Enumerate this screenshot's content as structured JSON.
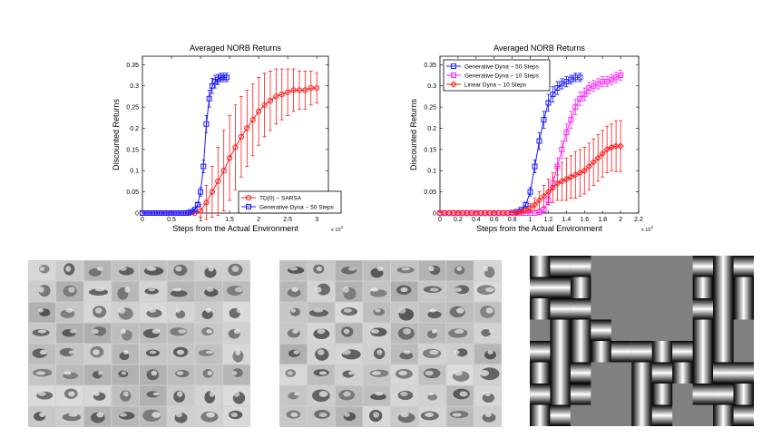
{
  "chart_data": [
    {
      "type": "line",
      "title": "Averaged NORB Returns",
      "xlabel": "Steps from the Actual Environment",
      "ylabel": "Discounted Returns",
      "x_multiplier": "x 10",
      "x_multiplier_exp": "4",
      "xlim": [
        0,
        3.2
      ],
      "ylim": [
        0,
        0.37
      ],
      "x_ticks": [
        0,
        0.5,
        1,
        1.5,
        2,
        2.5,
        3
      ],
      "x_tick_labels": [
        "0",
        "0.5",
        "1",
        "1.5",
        "2",
        "2.5",
        "3"
      ],
      "y_ticks": [
        0,
        0.05,
        0.1,
        0.15,
        0.2,
        0.25,
        0.3,
        0.35
      ],
      "y_tick_labels": [
        "0",
        "0.05",
        "0.1",
        "0.15",
        "0.2",
        "0.25",
        "0.3",
        "0.35"
      ],
      "legend_position": "bottom-right",
      "series": [
        {
          "name": "TD(0) − SARSA",
          "color": "#ff1a1a",
          "marker": "circle",
          "x": [
            0,
            0.1,
            0.2,
            0.3,
            0.4,
            0.5,
            0.6,
            0.7,
            0.8,
            0.9,
            1.0,
            1.1,
            1.2,
            1.3,
            1.4,
            1.5,
            1.6,
            1.7,
            1.8,
            1.9,
            2.0,
            2.1,
            2.2,
            2.3,
            2.4,
            2.5,
            2.6,
            2.7,
            2.8,
            2.9,
            3.0
          ],
          "y": [
            0,
            0,
            0,
            0,
            0,
            0,
            0,
            0,
            0,
            0,
            0.005,
            0.025,
            0.05,
            0.075,
            0.1,
            0.13,
            0.155,
            0.18,
            0.2,
            0.22,
            0.24,
            0.255,
            0.265,
            0.275,
            0.28,
            0.285,
            0.29,
            0.29,
            0.29,
            0.295,
            0.295
          ],
          "err": [
            0,
            0,
            0,
            0,
            0,
            0,
            0,
            0,
            0,
            0,
            0.015,
            0.04,
            0.06,
            0.08,
            0.095,
            0.1,
            0.1,
            0.095,
            0.09,
            0.085,
            0.08,
            0.075,
            0.07,
            0.065,
            0.06,
            0.055,
            0.05,
            0.045,
            0.045,
            0.04,
            0.035
          ]
        },
        {
          "name": "Generative Dyna − 50 Steps",
          "color": "#1a1aff",
          "marker": "square",
          "x": [
            0,
            0.05,
            0.1,
            0.15,
            0.2,
            0.25,
            0.3,
            0.35,
            0.4,
            0.45,
            0.5,
            0.55,
            0.6,
            0.65,
            0.7,
            0.75,
            0.8,
            0.85,
            0.9,
            0.95,
            1.0,
            1.05,
            1.1,
            1.15,
            1.2,
            1.25,
            1.3,
            1.35,
            1.4,
            1.45
          ],
          "y": [
            0,
            0,
            0,
            0,
            0,
            0,
            0,
            0,
            0,
            0,
            0,
            0,
            0,
            0,
            0,
            0,
            0.001,
            0.003,
            0.008,
            0.02,
            0.05,
            0.11,
            0.21,
            0.27,
            0.3,
            0.31,
            0.315,
            0.32,
            0.32,
            0.32
          ],
          "err": [
            0,
            0,
            0,
            0,
            0,
            0,
            0,
            0,
            0,
            0,
            0,
            0,
            0,
            0,
            0,
            0,
            0,
            0,
            0.002,
            0.004,
            0.01,
            0.015,
            0.02,
            0.02,
            0.018,
            0.015,
            0.012,
            0.01,
            0.01,
            0.01
          ]
        }
      ]
    },
    {
      "type": "line",
      "title": "Averaged NORB Returns",
      "xlabel": "Steps from the Actual Environment",
      "ylabel": "Discounted Returns",
      "x_multiplier": "x 10",
      "x_multiplier_exp": "4",
      "xlim": [
        0,
        2.2
      ],
      "ylim": [
        0,
        0.37
      ],
      "x_ticks": [
        0,
        0.2,
        0.4,
        0.6,
        0.8,
        1,
        1.2,
        1.4,
        1.6,
        1.8,
        2,
        2.2
      ],
      "x_tick_labels": [
        "0",
        "0.2",
        "0.4",
        "0.6",
        "0.8",
        "1",
        "1.2",
        "1.4",
        "1.6",
        "1.8",
        "2",
        "2.2"
      ],
      "y_ticks": [
        0,
        0.05,
        0.1,
        0.15,
        0.2,
        0.25,
        0.3,
        0.35
      ],
      "y_tick_labels": [
        "0",
        "0.05",
        "0.1",
        "0.15",
        "0.2",
        "0.25",
        "0.3",
        "0.35"
      ],
      "legend_position": "top-left",
      "series": [
        {
          "name": "Generative Dyna − 50 Steps",
          "color": "#1a1aff",
          "marker": "square",
          "x": [
            0,
            0.05,
            0.1,
            0.15,
            0.2,
            0.25,
            0.3,
            0.35,
            0.4,
            0.45,
            0.5,
            0.55,
            0.6,
            0.65,
            0.7,
            0.75,
            0.8,
            0.85,
            0.9,
            0.95,
            1.0,
            1.05,
            1.1,
            1.15,
            1.2,
            1.25,
            1.3,
            1.35,
            1.4,
            1.45,
            1.5,
            1.55
          ],
          "y": [
            0,
            0,
            0,
            0,
            0,
            0,
            0,
            0,
            0,
            0,
            0,
            0,
            0,
            0,
            0,
            0,
            0.001,
            0.003,
            0.008,
            0.02,
            0.05,
            0.11,
            0.17,
            0.22,
            0.26,
            0.28,
            0.295,
            0.305,
            0.31,
            0.315,
            0.32,
            0.32
          ],
          "err": [
            0,
            0,
            0,
            0,
            0,
            0,
            0,
            0,
            0,
            0,
            0,
            0,
            0,
            0,
            0,
            0,
            0,
            0,
            0.002,
            0.004,
            0.01,
            0.015,
            0.02,
            0.02,
            0.02,
            0.018,
            0.015,
            0.012,
            0.012,
            0.01,
            0.01,
            0.01
          ]
        },
        {
          "name": "Generative Dyna − 10 Steps",
          "color": "#ff22ff",
          "marker": "square",
          "x": [
            0,
            0.05,
            0.1,
            0.15,
            0.2,
            0.25,
            0.3,
            0.35,
            0.4,
            0.45,
            0.5,
            0.55,
            0.6,
            0.65,
            0.7,
            0.75,
            0.8,
            0.85,
            0.9,
            0.95,
            1.0,
            1.05,
            1.1,
            1.15,
            1.2,
            1.25,
            1.3,
            1.35,
            1.4,
            1.45,
            1.5,
            1.55,
            1.6,
            1.65,
            1.7,
            1.75,
            1.8,
            1.85,
            1.9,
            1.95,
            2.0
          ],
          "y": [
            0,
            0,
            0,
            0,
            0,
            0,
            0,
            0,
            0,
            0,
            0,
            0,
            0,
            0,
            0,
            0,
            0,
            0,
            0,
            0,
            0,
            0,
            0.002,
            0.008,
            0.03,
            0.07,
            0.11,
            0.15,
            0.19,
            0.22,
            0.25,
            0.27,
            0.28,
            0.295,
            0.3,
            0.305,
            0.31,
            0.31,
            0.315,
            0.32,
            0.325
          ],
          "err": [
            0,
            0,
            0,
            0,
            0,
            0,
            0,
            0,
            0,
            0,
            0,
            0,
            0,
            0,
            0,
            0,
            0,
            0,
            0,
            0,
            0,
            0,
            0.002,
            0.005,
            0.01,
            0.015,
            0.02,
            0.02,
            0.02,
            0.02,
            0.018,
            0.016,
            0.015,
            0.014,
            0.013,
            0.012,
            0.012,
            0.012,
            0.012,
            0.012,
            0.012
          ]
        },
        {
          "name": "Linear Dyna − 10 Steps",
          "color": "#ff1a1a",
          "marker": "diamond",
          "x": [
            0,
            0.05,
            0.1,
            0.15,
            0.2,
            0.25,
            0.3,
            0.35,
            0.4,
            0.45,
            0.5,
            0.55,
            0.6,
            0.65,
            0.7,
            0.75,
            0.8,
            0.85,
            0.9,
            0.95,
            1.0,
            1.05,
            1.1,
            1.15,
            1.2,
            1.25,
            1.3,
            1.35,
            1.4,
            1.45,
            1.5,
            1.55,
            1.6,
            1.65,
            1.7,
            1.75,
            1.8,
            1.85,
            1.9,
            1.95,
            2.0
          ],
          "y": [
            0,
            0,
            0,
            0,
            0,
            0,
            0,
            0,
            0,
            0,
            0,
            0,
            0,
            0,
            0,
            0,
            0,
            0.001,
            0.003,
            0.006,
            0.012,
            0.02,
            0.03,
            0.04,
            0.05,
            0.06,
            0.07,
            0.075,
            0.08,
            0.085,
            0.09,
            0.095,
            0.1,
            0.11,
            0.12,
            0.13,
            0.14,
            0.15,
            0.155,
            0.158,
            0.158
          ],
          "err": [
            0,
            0,
            0,
            0,
            0,
            0,
            0,
            0,
            0,
            0,
            0,
            0,
            0,
            0,
            0,
            0,
            0,
            0.001,
            0.003,
            0.006,
            0.01,
            0.015,
            0.02,
            0.025,
            0.03,
            0.035,
            0.04,
            0.045,
            0.05,
            0.05,
            0.055,
            0.055,
            0.055,
            0.055,
            0.055,
            0.055,
            0.055,
            0.055,
            0.055,
            0.06,
            0.06
          ]
        }
      ]
    }
  ],
  "image_panels": [
    {
      "name": "left-car-grid",
      "rows": 8,
      "cols": 8
    },
    {
      "name": "middle-car-grid",
      "rows": 8,
      "cols": 8
    },
    {
      "name": "feature-grid"
    }
  ]
}
